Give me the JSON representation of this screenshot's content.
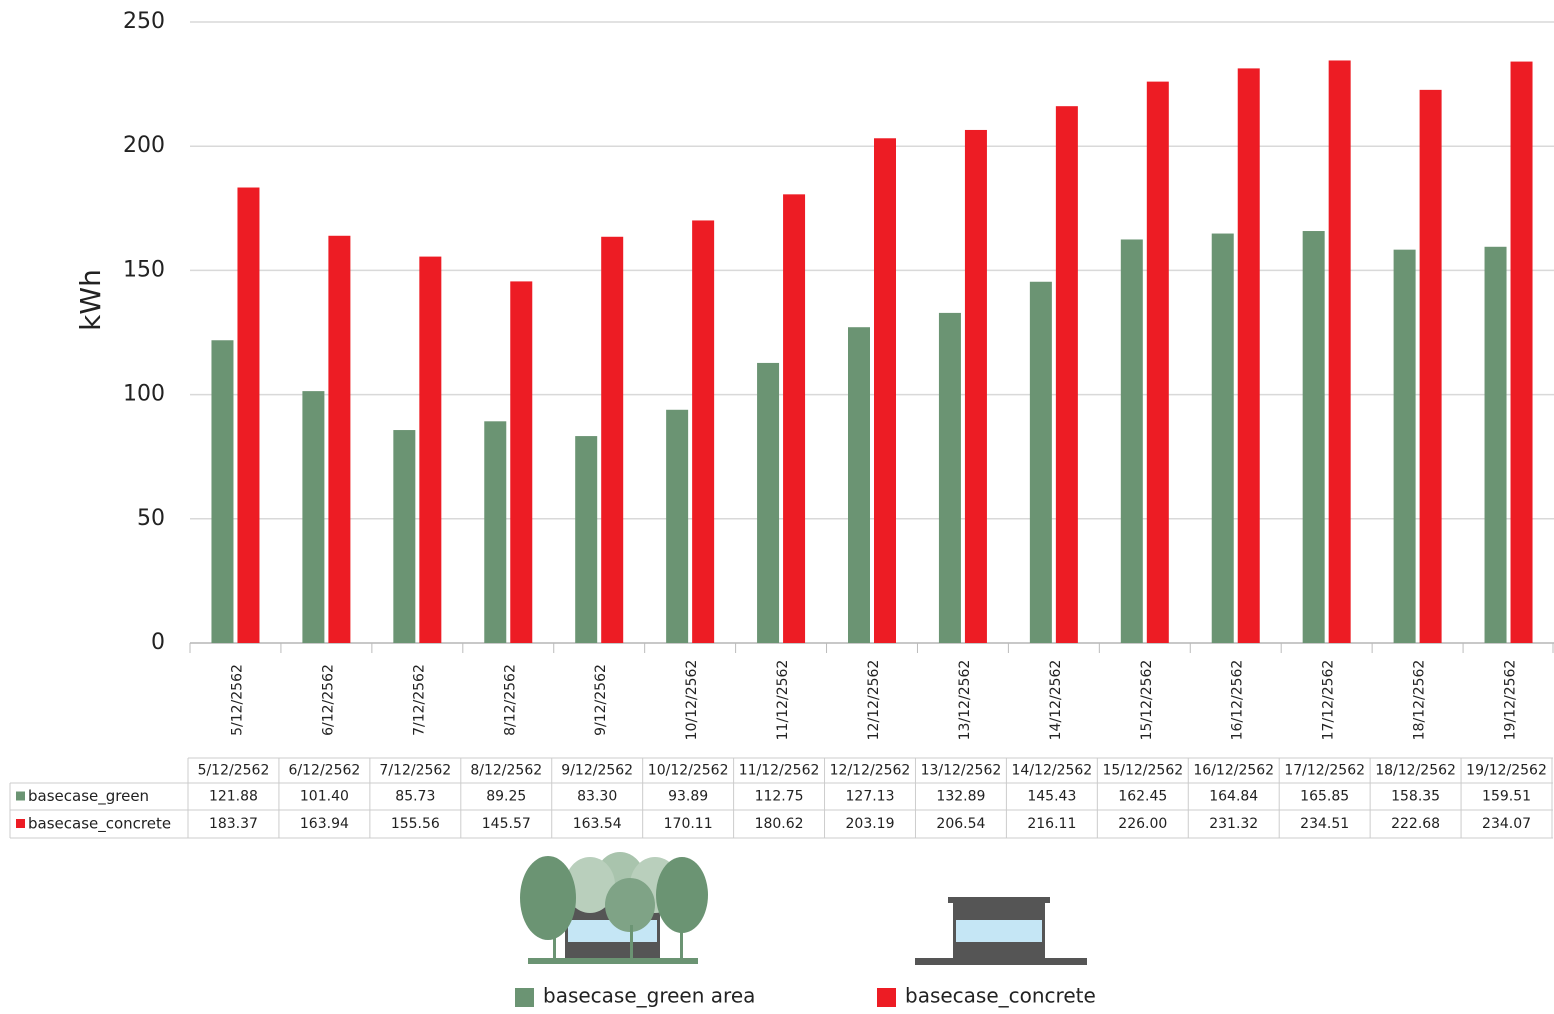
{
  "chart_data": {
    "type": "bar",
    "y_label": "kWh",
    "categories": [
      "5/12/2562",
      "6/12/2562",
      "7/12/2562",
      "8/12/2562",
      "9/12/2562",
      "10/12/2562",
      "11/12/2562",
      "12/12/2562",
      "13/12/2562",
      "14/12/2562",
      "15/12/2562",
      "16/12/2562",
      "17/12/2562",
      "18/12/2562",
      "19/12/2562"
    ],
    "series": [
      {
        "name": "basecase_green area",
        "color": "#6b9473",
        "values": [
          121.88,
          101.4,
          85.73,
          89.25,
          83.3,
          93.89,
          112.75,
          127.13,
          132.89,
          145.43,
          162.45,
          164.84,
          165.85,
          158.35,
          159.51
        ],
        "value_labels": [
          "121.88",
          "101.40",
          "85.73",
          "89.25",
          "83.30",
          "93.89",
          "112.75",
          "127.13",
          "132.89",
          "145.43",
          "162.45",
          "164.84",
          "165.85",
          "158.35",
          "159.51"
        ]
      },
      {
        "name": "basecase_concrete",
        "color": "#ed1c24",
        "values": [
          183.37,
          163.94,
          155.56,
          145.57,
          163.54,
          170.11,
          180.62,
          203.19,
          206.54,
          216.11,
          226.0,
          231.32,
          234.51,
          222.68,
          234.07
        ],
        "value_labels": [
          "183.37",
          "163.94",
          "155.56",
          "145.57",
          "163.54",
          "170.11",
          "180.62",
          "203.19",
          "206.54",
          "216.11",
          "226.00",
          "231.32",
          "234.51",
          "222.68",
          "234.07"
        ]
      }
    ],
    "table_row_labels": [
      "basecase_green",
      "basecase_concrete"
    ],
    "ylim": [
      0,
      250
    ],
    "yticks": [
      0,
      50,
      100,
      150,
      200,
      250
    ],
    "grid": true
  }
}
